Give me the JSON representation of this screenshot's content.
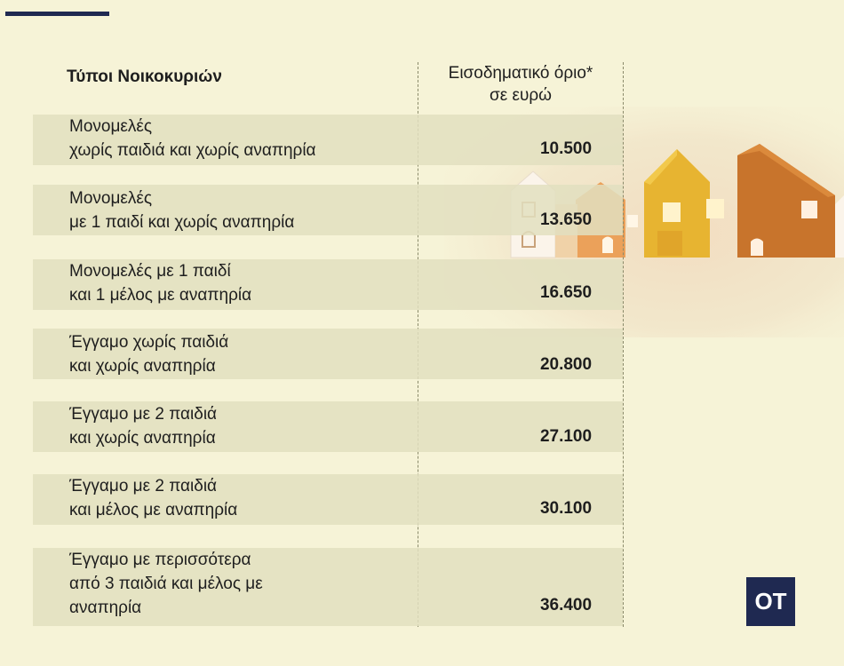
{
  "header": {
    "type_label": "Τύποι Νοικοκυριών",
    "limit_label": "Εισοδηματικό όριο*\nσε ευρώ"
  },
  "rows": [
    {
      "label": "Μονομελές\nχωρίς παιδιά και χωρίς αναπηρία",
      "value": "10.500"
    },
    {
      "label": "Μονομελές\nμε 1 παιδί και χωρίς αναπηρία",
      "value": "13.650"
    },
    {
      "label": "Μονομελές με 1 παιδί\nκαι 1 μέλος με αναπηρία",
      "value": "16.650"
    },
    {
      "label": "Έγγαμο χωρίς παιδιά\nκαι χωρίς αναπηρία",
      "value": "20.800"
    },
    {
      "label": "Έγγαμο με 2 παιδιά\nκαι χωρίς αναπηρία",
      "value": "27.100"
    },
    {
      "label": "Έγγαμο με 2 παιδιά\nκαι μέλος με αναπηρία",
      "value": "30.100"
    },
    {
      "label": "Έγγαμο με περισσότερα\nαπό 3 παιδιά και μέλος με\nαναπηρία",
      "value": "36.400"
    }
  ],
  "logo": {
    "text": "OT"
  },
  "colors": {
    "background": "#f6f3d7",
    "row_band": "#e2dfc0",
    "brand_navy": "#1f2951"
  },
  "decoration": {
    "image": "row-of-wooden-houses"
  }
}
